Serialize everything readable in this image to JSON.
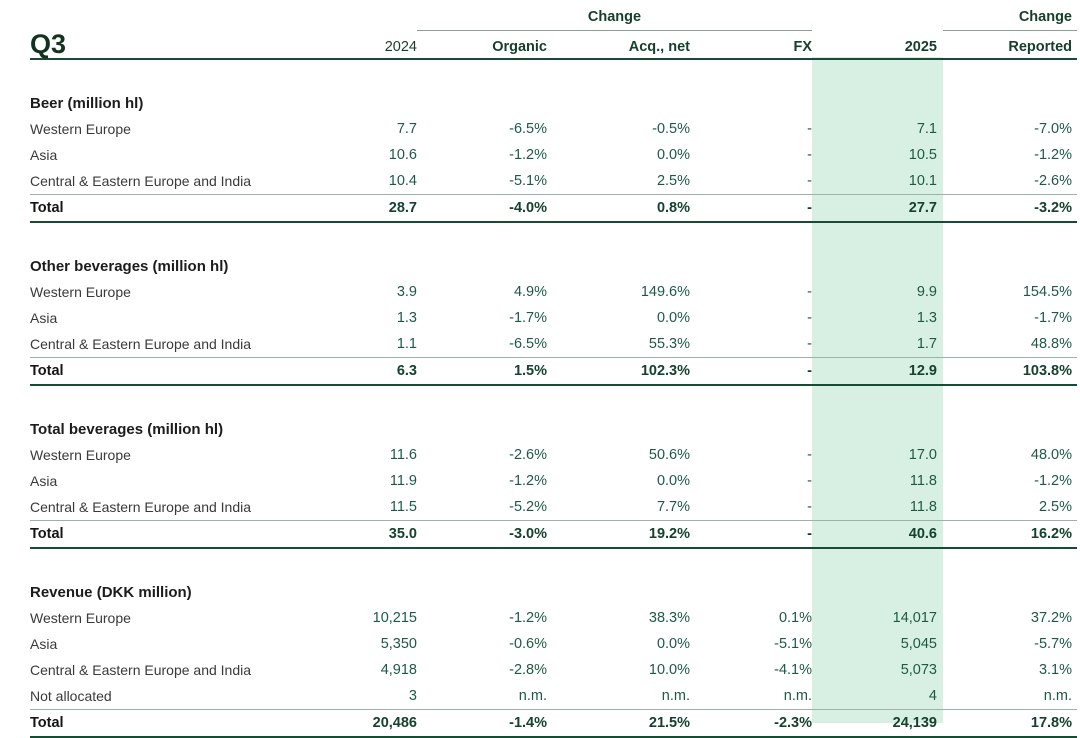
{
  "header": {
    "title": "Q3",
    "change_group_label": "Change",
    "change_reported_group_label": "Change",
    "columns": {
      "prev_year": "2024",
      "organic": "Organic",
      "acq_net": "Acq., net",
      "fx": "FX",
      "curr_year": "2025",
      "reported": "Reported"
    }
  },
  "colors": {
    "brand_green_dark": "#12331f",
    "header_green": "#153f2b",
    "number_green": "#1d5a41",
    "highlight_band": "#d8f0e3",
    "rule_dark": "#174b33",
    "rule_light": "#9db2a6"
  },
  "sections": [
    {
      "title": "Beer (million hl)",
      "rows": [
        {
          "label": "Western Europe",
          "values": [
            "7.7",
            "-6.5%",
            "-0.5%",
            "-",
            "7.1",
            "-7.0%"
          ]
        },
        {
          "label": "Asia",
          "values": [
            "10.6",
            "-1.2%",
            "0.0%",
            "-",
            "10.5",
            "-1.2%"
          ]
        },
        {
          "label": "Central & Eastern Europe and India",
          "values": [
            "10.4",
            "-5.1%",
            "2.5%",
            "-",
            "10.1",
            "-2.6%"
          ]
        }
      ],
      "total": {
        "label": "Total",
        "values": [
          "28.7",
          "-4.0%",
          "0.8%",
          "-",
          "27.7",
          "-3.2%"
        ]
      }
    },
    {
      "title": "Other beverages (million hl)",
      "rows": [
        {
          "label": "Western Europe",
          "values": [
            "3.9",
            "4.9%",
            "149.6%",
            "-",
            "9.9",
            "154.5%"
          ]
        },
        {
          "label": "Asia",
          "values": [
            "1.3",
            "-1.7%",
            "0.0%",
            "-",
            "1.3",
            "-1.7%"
          ]
        },
        {
          "label": "Central & Eastern Europe and India",
          "values": [
            "1.1",
            "-6.5%",
            "55.3%",
            "-",
            "1.7",
            "48.8%"
          ]
        }
      ],
      "total": {
        "label": "Total",
        "values": [
          "6.3",
          "1.5%",
          "102.3%",
          "-",
          "12.9",
          "103.8%"
        ]
      }
    },
    {
      "title": "Total beverages (million hl)",
      "rows": [
        {
          "label": "Western Europe",
          "values": [
            "11.6",
            "-2.6%",
            "50.6%",
            "-",
            "17.0",
            "48.0%"
          ]
        },
        {
          "label": "Asia",
          "values": [
            "11.9",
            "-1.2%",
            "0.0%",
            "-",
            "11.8",
            "-1.2%"
          ]
        },
        {
          "label": "Central & Eastern Europe and India",
          "values": [
            "11.5",
            "-5.2%",
            "7.7%",
            "-",
            "11.8",
            "2.5%"
          ]
        }
      ],
      "total": {
        "label": "Total",
        "values": [
          "35.0",
          "-3.0%",
          "19.2%",
          "-",
          "40.6",
          "16.2%"
        ]
      }
    },
    {
      "title": "Revenue (DKK million)",
      "rows": [
        {
          "label": "Western Europe",
          "values": [
            "10,215",
            "-1.2%",
            "38.3%",
            "0.1%",
            "14,017",
            "37.2%"
          ]
        },
        {
          "label": "Asia",
          "values": [
            "5,350",
            "-0.6%",
            "0.0%",
            "-5.1%",
            "5,045",
            "-5.7%"
          ]
        },
        {
          "label": "Central & Eastern Europe and India",
          "values": [
            "4,918",
            "-2.8%",
            "10.0%",
            "-4.1%",
            "5,073",
            "3.1%"
          ]
        },
        {
          "label": "Not allocated",
          "values": [
            "3",
            "n.m.",
            "n.m.",
            "n.m.",
            "4",
            "n.m."
          ]
        }
      ],
      "total": {
        "label": "Total",
        "values": [
          "20,486",
          "-1.4%",
          "21.5%",
          "-2.3%",
          "24,139",
          "17.8%"
        ]
      }
    }
  ]
}
